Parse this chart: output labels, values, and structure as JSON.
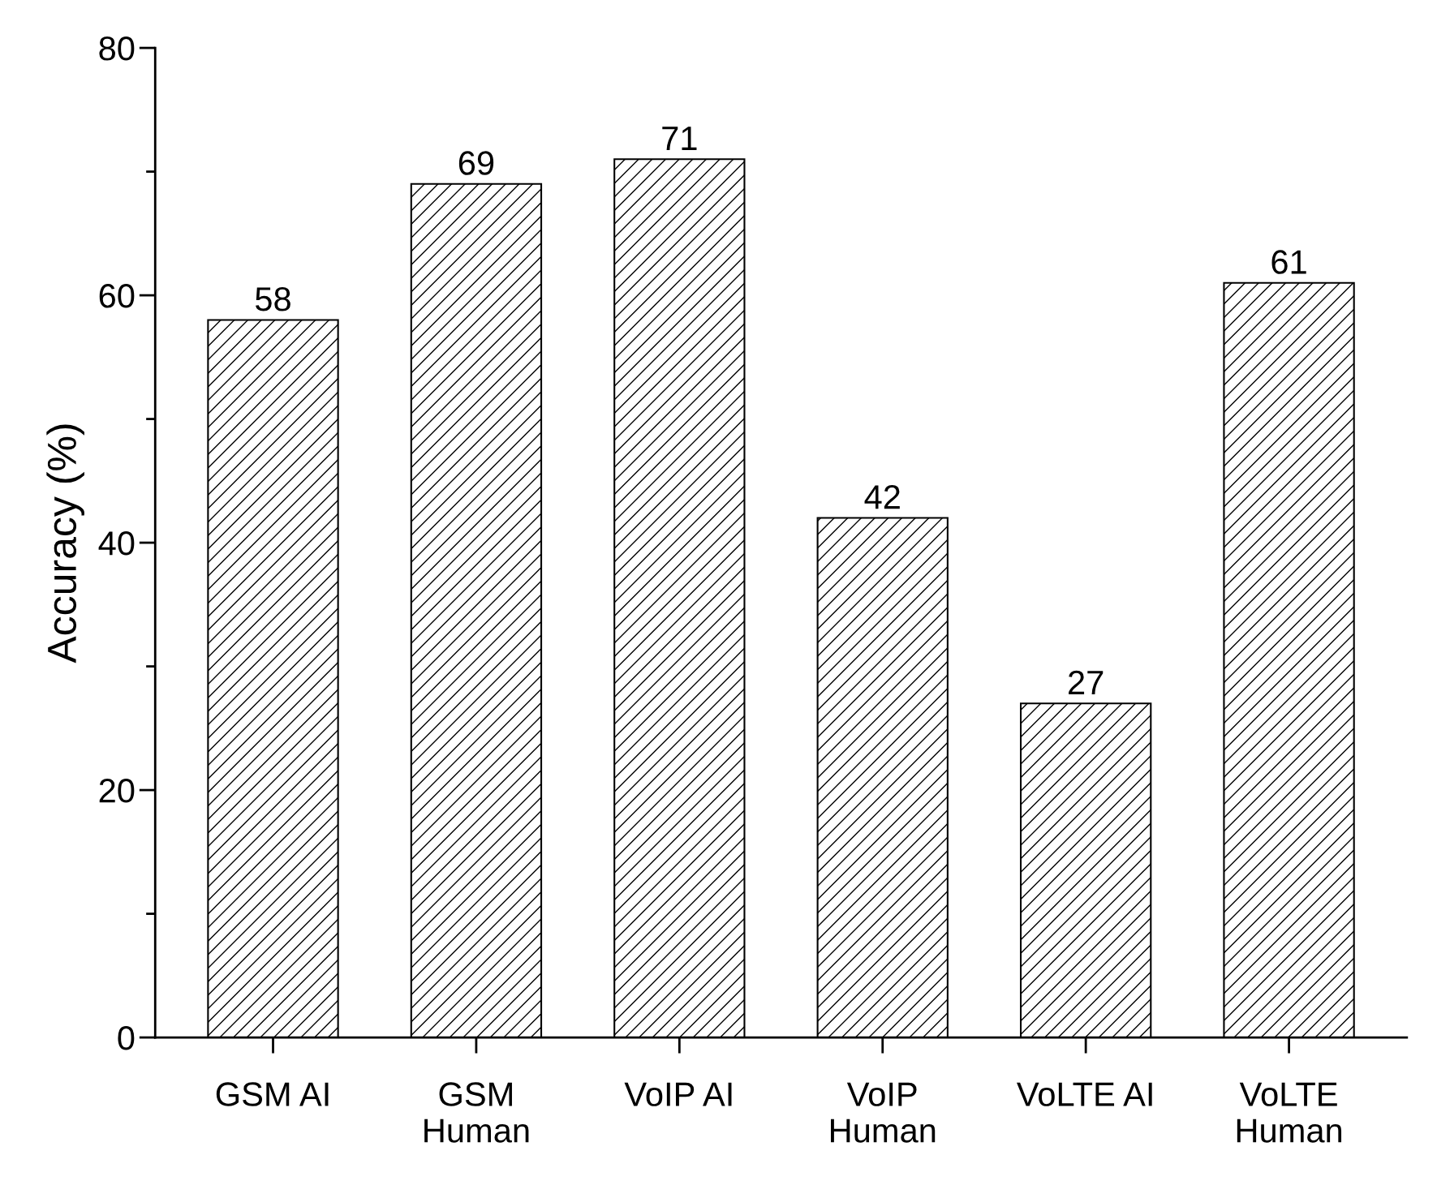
{
  "chart_data": {
    "type": "bar",
    "ylabel": "Accuracy (%)",
    "categories": [
      "GSM AI",
      "GSM\nHuman",
      "VoIP AI",
      "VoIP\nHuman",
      "VoLTE AI",
      "VoLTE\nHuman"
    ],
    "values": [
      58,
      69,
      71,
      42,
      27,
      61
    ],
    "color": "#000000",
    "ylim": [
      0,
      80
    ],
    "yticks": [
      0,
      {
        "value": 10,
        "label": null
      },
      20,
      {
        "value": 30,
        "label": null
      },
      40,
      {
        "value": 50,
        "label": null
      },
      60,
      {
        "value": 70,
        "label": null
      },
      80
    ],
    "data_labels": true,
    "grid": false,
    "legend": false
  }
}
